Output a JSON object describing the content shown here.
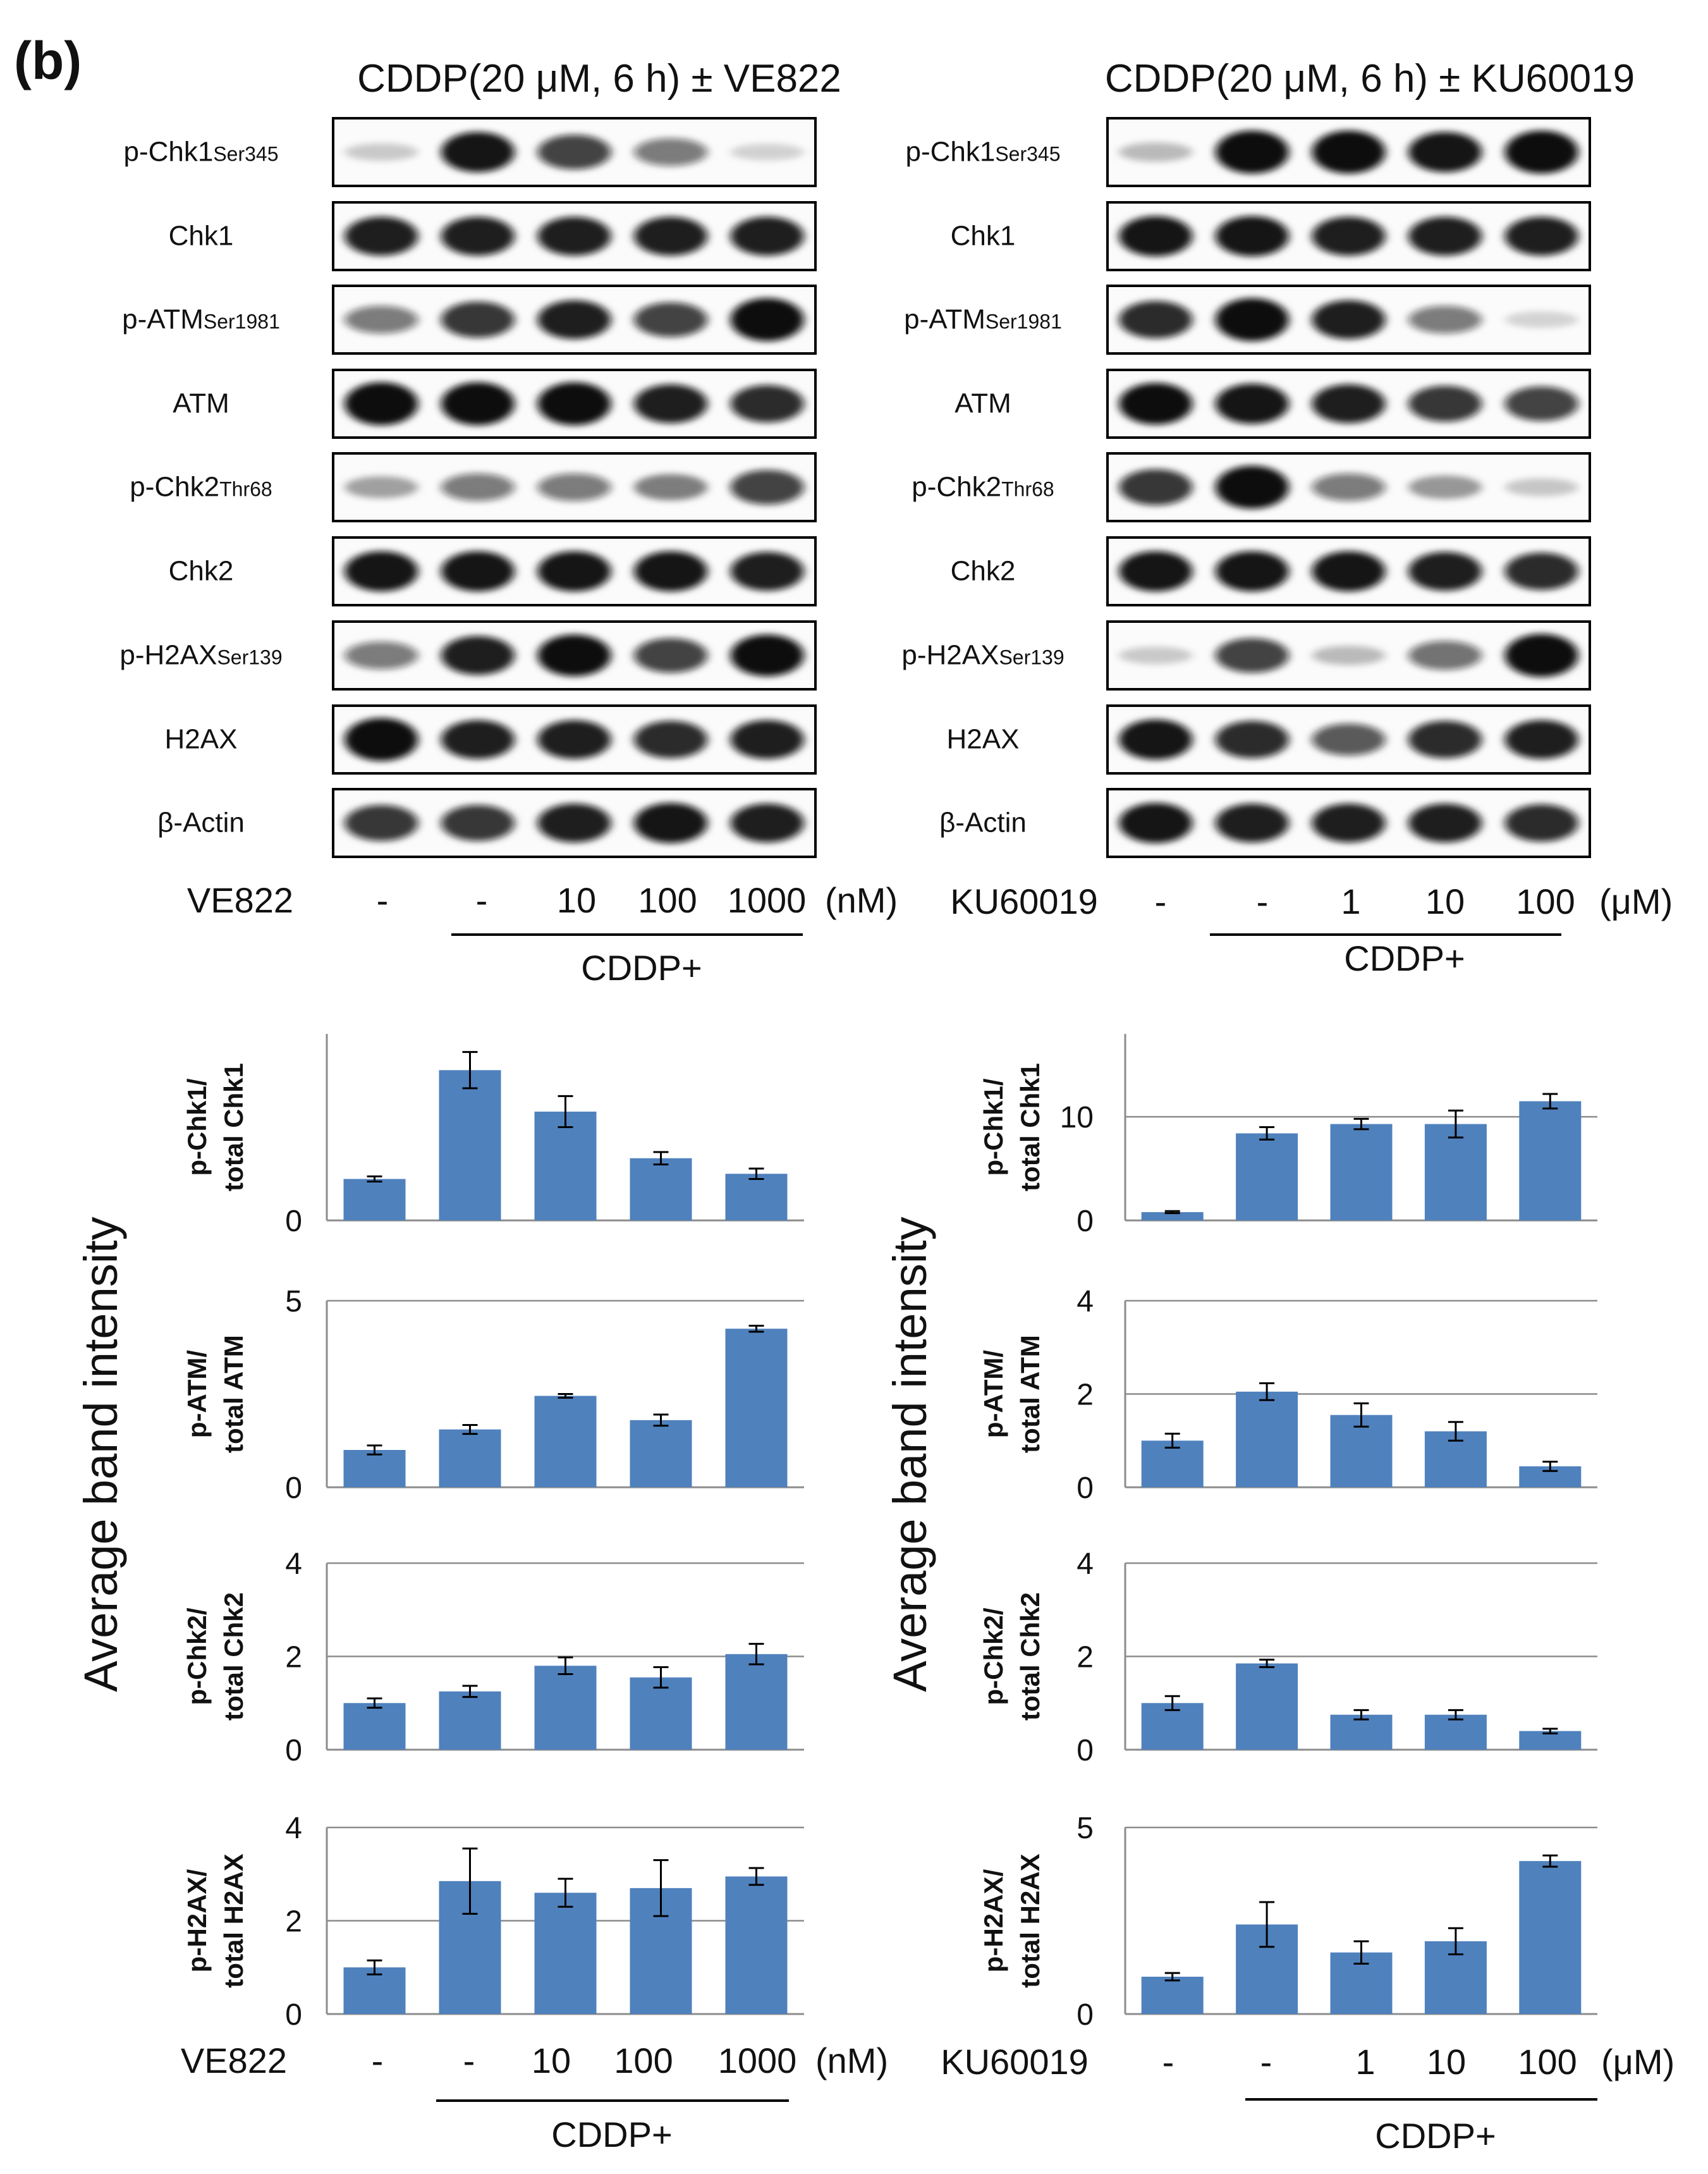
{
  "panel_label": "(b)",
  "colors": {
    "bar": "#4f81bd",
    "frame": "#000000",
    "grid": "#8c8c8c",
    "text": "#111111"
  },
  "left": {
    "title": "CDDP(20 μM, 6 h) ± VE822",
    "blot_labels": [
      {
        "main": "p-Chk1",
        "sub": "Ser345"
      },
      {
        "main": "Chk1",
        "sub": ""
      },
      {
        "main": "p-ATM",
        "sub": "Ser1981"
      },
      {
        "main": "ATM",
        "sub": ""
      },
      {
        "main": "p-Chk2",
        "sub": "Thr68"
      },
      {
        "main": "Chk2",
        "sub": ""
      },
      {
        "main": "p-H2AX",
        "sub": "Ser139"
      },
      {
        "main": "H2AX",
        "sub": ""
      },
      {
        "main": "β-Actin",
        "sub": ""
      }
    ],
    "band_intensity": [
      [
        0.08,
        0.9,
        0.7,
        0.45,
        0.05
      ],
      [
        0.85,
        0.85,
        0.85,
        0.85,
        0.85
      ],
      [
        0.45,
        0.75,
        0.85,
        0.7,
        1.0
      ],
      [
        1.0,
        1.0,
        1.0,
        0.85,
        0.8
      ],
      [
        0.25,
        0.45,
        0.45,
        0.4,
        0.7
      ],
      [
        0.9,
        0.9,
        0.9,
        0.9,
        0.85
      ],
      [
        0.45,
        0.85,
        0.95,
        0.7,
        0.95
      ],
      [
        1.0,
        0.85,
        0.85,
        0.8,
        0.85
      ],
      [
        0.75,
        0.75,
        0.85,
        0.9,
        0.85
      ]
    ],
    "treatment_label": "VE822",
    "doses": [
      "-",
      "-",
      "10",
      "100",
      "1000"
    ],
    "unit": "(nM)",
    "group_label": "CDDP+",
    "y_axis_title": "Average band intensity"
  },
  "right": {
    "title": "CDDP(20 μM, 6 h) ± KU60019",
    "blot_labels": [
      {
        "main": "p-Chk1",
        "sub": "Ser345"
      },
      {
        "main": "Chk1",
        "sub": ""
      },
      {
        "main": "p-ATM",
        "sub": "Ser1981"
      },
      {
        "main": "ATM",
        "sub": ""
      },
      {
        "main": "p-Chk2",
        "sub": "Thr68"
      },
      {
        "main": "Chk2",
        "sub": ""
      },
      {
        "main": "p-H2AX",
        "sub": "Ser139"
      },
      {
        "main": "H2AX",
        "sub": ""
      },
      {
        "main": "β-Actin",
        "sub": ""
      }
    ],
    "band_intensity": [
      [
        0.15,
        1.0,
        1.0,
        0.9,
        1.0
      ],
      [
        0.9,
        0.9,
        0.85,
        0.85,
        0.85
      ],
      [
        0.8,
        1.0,
        0.85,
        0.45,
        0.04
      ],
      [
        0.95,
        0.9,
        0.85,
        0.75,
        0.7
      ],
      [
        0.75,
        1.0,
        0.45,
        0.3,
        0.1
      ],
      [
        0.9,
        0.9,
        0.9,
        0.85,
        0.8
      ],
      [
        0.08,
        0.7,
        0.15,
        0.5,
        1.0
      ],
      [
        0.9,
        0.8,
        0.6,
        0.8,
        0.85
      ],
      [
        0.9,
        0.85,
        0.85,
        0.85,
        0.8
      ]
    ],
    "treatment_label": "KU60019",
    "doses": [
      "-",
      "-",
      "1",
      "10",
      "100"
    ],
    "unit": "(μM)",
    "group_label": "CDDP+",
    "y_axis_title": "Average band intensity"
  },
  "chart_data": [
    {
      "type": "bar",
      "side": "left",
      "ylabel": [
        "p-Chk1/",
        "total Chk1"
      ],
      "categories": [
        "-",
        "-",
        "10",
        "100",
        "1000"
      ],
      "values": [
        0.8,
        2.9,
        2.1,
        1.2,
        0.9
      ],
      "errors": [
        0.05,
        0.35,
        0.3,
        0.12,
        0.1
      ],
      "ylim": [
        0,
        3.6
      ],
      "yticks": [
        0
      ]
    },
    {
      "type": "bar",
      "side": "left",
      "ylabel": [
        "p-ATM/",
        "total ATM"
      ],
      "categories": [
        "-",
        "-",
        "10",
        "100",
        "1000"
      ],
      "values": [
        1.0,
        1.55,
        2.45,
        1.8,
        4.25
      ],
      "errors": [
        0.12,
        0.12,
        0.05,
        0.15,
        0.08
      ],
      "ylim": [
        0,
        5
      ],
      "yticks": [
        0,
        5
      ]
    },
    {
      "type": "bar",
      "side": "left",
      "ylabel": [
        "p-Chk2/",
        "total Chk2"
      ],
      "categories": [
        "-",
        "-",
        "10",
        "100",
        "1000"
      ],
      "values": [
        1.0,
        1.25,
        1.8,
        1.55,
        2.05
      ],
      "errors": [
        0.1,
        0.12,
        0.18,
        0.22,
        0.22
      ],
      "ylim": [
        0,
        4
      ],
      "yticks": [
        0,
        2,
        4
      ]
    },
    {
      "type": "bar",
      "side": "left",
      "ylabel": [
        "p-H2AX/",
        "total H2AX"
      ],
      "categories": [
        "-",
        "-",
        "10",
        "100",
        "1000"
      ],
      "values": [
        1.0,
        2.85,
        2.6,
        2.7,
        2.95
      ],
      "errors": [
        0.15,
        0.7,
        0.3,
        0.6,
        0.18
      ],
      "ylim": [
        0,
        4
      ],
      "yticks": [
        0,
        2,
        4
      ]
    },
    {
      "type": "bar",
      "side": "right",
      "ylabel": [
        "p-Chk1/",
        "total Chk1"
      ],
      "categories": [
        "-",
        "-",
        "1",
        "10",
        "100"
      ],
      "values": [
        0.8,
        8.4,
        9.3,
        9.3,
        11.5
      ],
      "errors": [
        0.1,
        0.6,
        0.5,
        1.3,
        0.7
      ],
      "ylim": [
        0,
        18
      ],
      "yticks": [
        0,
        10
      ]
    },
    {
      "type": "bar",
      "side": "right",
      "ylabel": [
        "p-ATM/",
        "total ATM"
      ],
      "categories": [
        "-",
        "-",
        "1",
        "10",
        "100"
      ],
      "values": [
        1.0,
        2.05,
        1.55,
        1.2,
        0.45
      ],
      "errors": [
        0.15,
        0.18,
        0.25,
        0.2,
        0.1
      ],
      "ylim": [
        0,
        4
      ],
      "yticks": [
        0,
        2,
        4
      ]
    },
    {
      "type": "bar",
      "side": "right",
      "ylabel": [
        "p-Chk2/",
        "total Chk2"
      ],
      "categories": [
        "-",
        "-",
        "1",
        "10",
        "100"
      ],
      "values": [
        1.0,
        1.85,
        0.75,
        0.75,
        0.4
      ],
      "errors": [
        0.15,
        0.08,
        0.1,
        0.1,
        0.05
      ],
      "ylim": [
        0,
        4
      ],
      "yticks": [
        0,
        2,
        4
      ]
    },
    {
      "type": "bar",
      "side": "right",
      "ylabel": [
        "p-H2AX/",
        "total H2AX"
      ],
      "categories": [
        "-",
        "-",
        "1",
        "10",
        "100"
      ],
      "values": [
        1.0,
        2.4,
        1.65,
        1.95,
        4.1
      ],
      "errors": [
        0.1,
        0.6,
        0.3,
        0.35,
        0.15
      ],
      "ylim": [
        0,
        5
      ],
      "yticks": [
        0,
        5
      ]
    }
  ]
}
